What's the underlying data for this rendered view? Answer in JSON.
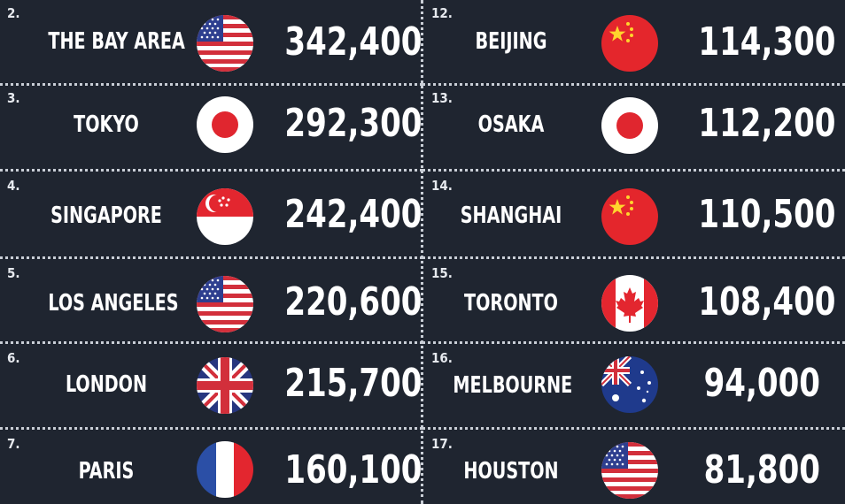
{
  "left": [
    {
      "rank": "2.",
      "city": "THE BAY AREA",
      "value": "342,400",
      "flag": "usa-flag-icon"
    },
    {
      "rank": "3.",
      "city": "TOKYO",
      "value": "292,300",
      "flag": "japan-flag-icon"
    },
    {
      "rank": "4.",
      "city": "SINGAPORE",
      "value": "242,400",
      "flag": "singapore-flag-icon"
    },
    {
      "rank": "5.",
      "city": "LOS ANGELES",
      "value": "220,600",
      "flag": "usa-flag-icon"
    },
    {
      "rank": "6.",
      "city": "LONDON",
      "value": "215,700",
      "flag": "uk-flag-icon"
    },
    {
      "rank": "7.",
      "city": "PARIS",
      "value": "160,100",
      "flag": "france-flag-icon"
    }
  ],
  "right": [
    {
      "rank": "12.",
      "city": "BEIJING",
      "value": "114,300",
      "flag": "china-flag-icon"
    },
    {
      "rank": "13.",
      "city": "OSAKA",
      "value": "112,200",
      "flag": "japan-flag-icon"
    },
    {
      "rank": "14.",
      "city": "SHANGHAI",
      "value": "110,500",
      "flag": "china-flag-icon"
    },
    {
      "rank": "15.",
      "city": "TORONTO",
      "value": "108,400",
      "flag": "canada-flag-icon"
    },
    {
      "rank": "16.",
      "city": "MELBOURNE",
      "value": "94,000",
      "flag": "australia-flag-icon"
    },
    {
      "rank": "17.",
      "city": "HOUSTON",
      "value": "81,800",
      "flag": "usa-flag-icon"
    }
  ],
  "colors": {
    "background": "#1f2530",
    "divider": "#c9ced6",
    "text": "#ffffff"
  }
}
